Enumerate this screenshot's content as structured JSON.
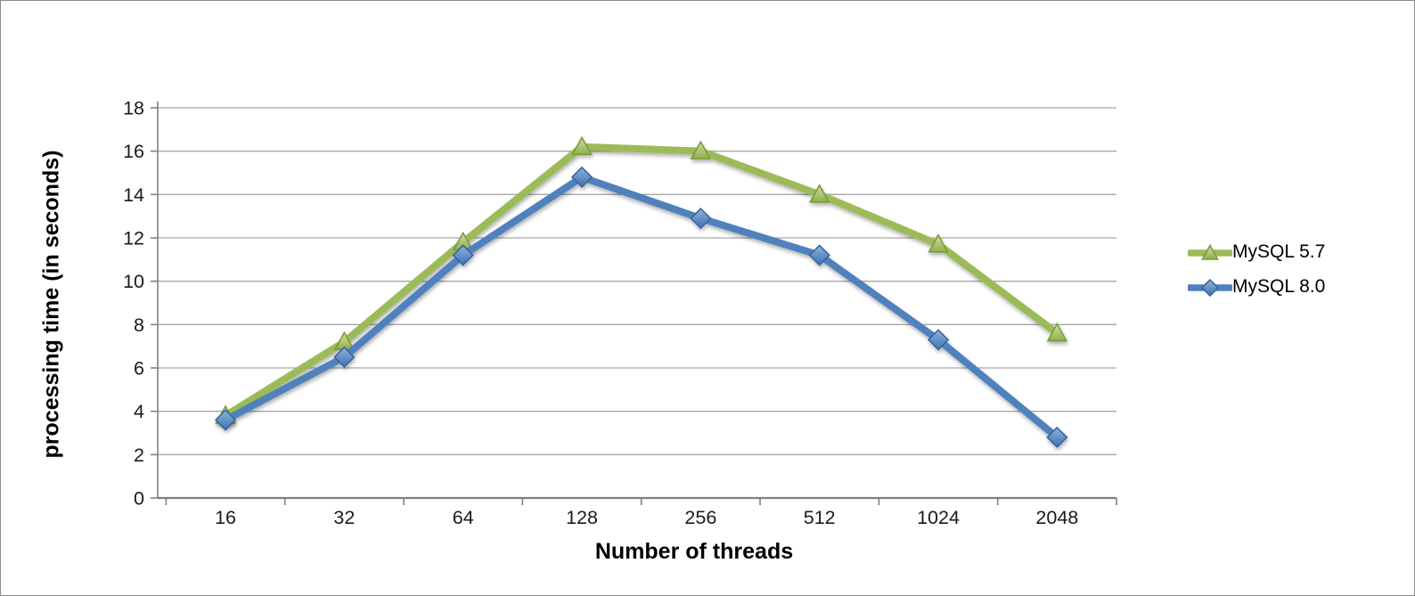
{
  "chart_data": {
    "type": "line",
    "title": "",
    "xlabel": "Number of threads",
    "ylabel": "processing time (in seconds)",
    "categories": [
      "16",
      "32",
      "64",
      "128",
      "256",
      "512",
      "1024",
      "2048"
    ],
    "series": [
      {
        "name": "MySQL 5.7",
        "marker": "triangle",
        "color": "#9BBB59",
        "marker_top": "#CEDE9A",
        "marker_bottom": "#8FB04E",
        "marker_border": "#79983E",
        "values": [
          3.8,
          7.2,
          11.8,
          16.2,
          16.0,
          14.0,
          11.7,
          7.6
        ]
      },
      {
        "name": "MySQL 8.0",
        "marker": "diamond",
        "color": "#4F81BD",
        "marker_top": "#8FB2DE",
        "marker_bottom": "#3F72AE",
        "marker_border": "#35629B",
        "values": [
          3.6,
          6.5,
          11.2,
          14.8,
          12.9,
          11.2,
          7.3,
          2.8
        ]
      }
    ],
    "ylim": [
      0,
      18
    ],
    "yticks": [
      0,
      2,
      4,
      6,
      8,
      10,
      12,
      14,
      16,
      18
    ],
    "grid": "horizontal",
    "legend_position": "right"
  },
  "colors": {
    "gridline": "#A6A6A6",
    "axis": "#808080",
    "tick_text": "#1A1A1A",
    "background": "#FFFFFF",
    "frame": "#8C8C8C"
  }
}
